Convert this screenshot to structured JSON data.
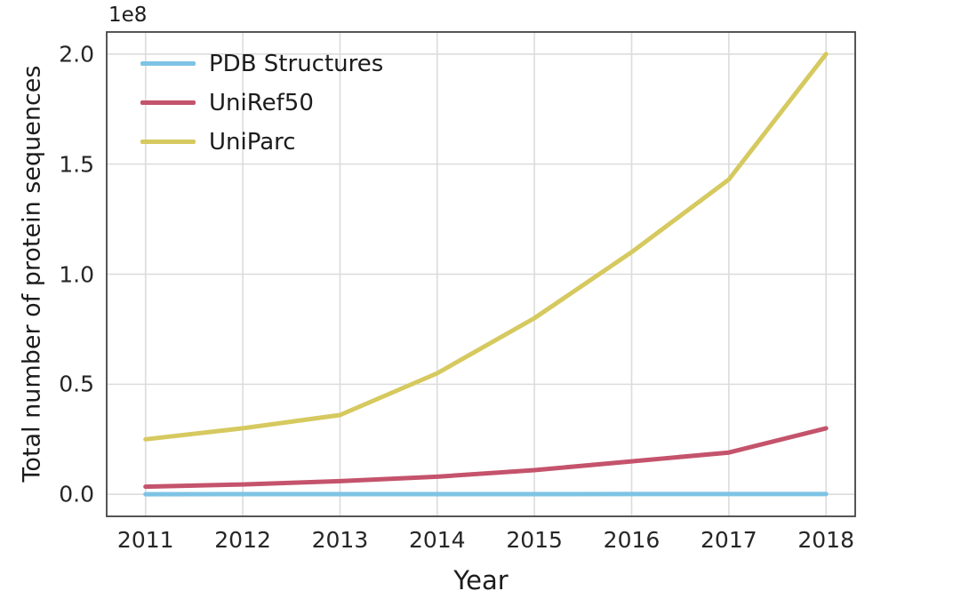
{
  "chart_data": {
    "type": "line",
    "title": "",
    "xlabel": "Year",
    "ylabel": "Total number of protein sequences",
    "y_offset_label": "1e8",
    "values_scale": "1e8",
    "x": [
      2011,
      2012,
      2013,
      2014,
      2015,
      2016,
      2017,
      2018
    ],
    "xtick_labels": [
      "2011",
      "2012",
      "2013",
      "2014",
      "2015",
      "2016",
      "2017",
      "2018"
    ],
    "ytick_values": [
      0.0,
      0.5,
      1.0,
      1.5,
      2.0
    ],
    "ytick_labels": [
      "0.0",
      "0.5",
      "1.0",
      "1.5",
      "2.0"
    ],
    "xlim": [
      2010.6,
      2018.3
    ],
    "ylim": [
      -0.1,
      2.1
    ],
    "grid": true,
    "legend_position": "upper left",
    "series": [
      {
        "name": "PDB Structures",
        "color": "#7EC3E4",
        "values": [
          0.0007,
          0.0008,
          0.0009,
          0.001,
          0.0011,
          0.0012,
          0.0013,
          0.0014
        ]
      },
      {
        "name": "UniRef50",
        "color": "#C4536B",
        "values": [
          0.035,
          0.045,
          0.06,
          0.08,
          0.11,
          0.15,
          0.19,
          0.3
        ]
      },
      {
        "name": "UniParc",
        "color": "#D6C95F",
        "values": [
          0.25,
          0.3,
          0.36,
          0.55,
          0.8,
          1.1,
          1.43,
          2.0
        ]
      }
    ]
  }
}
